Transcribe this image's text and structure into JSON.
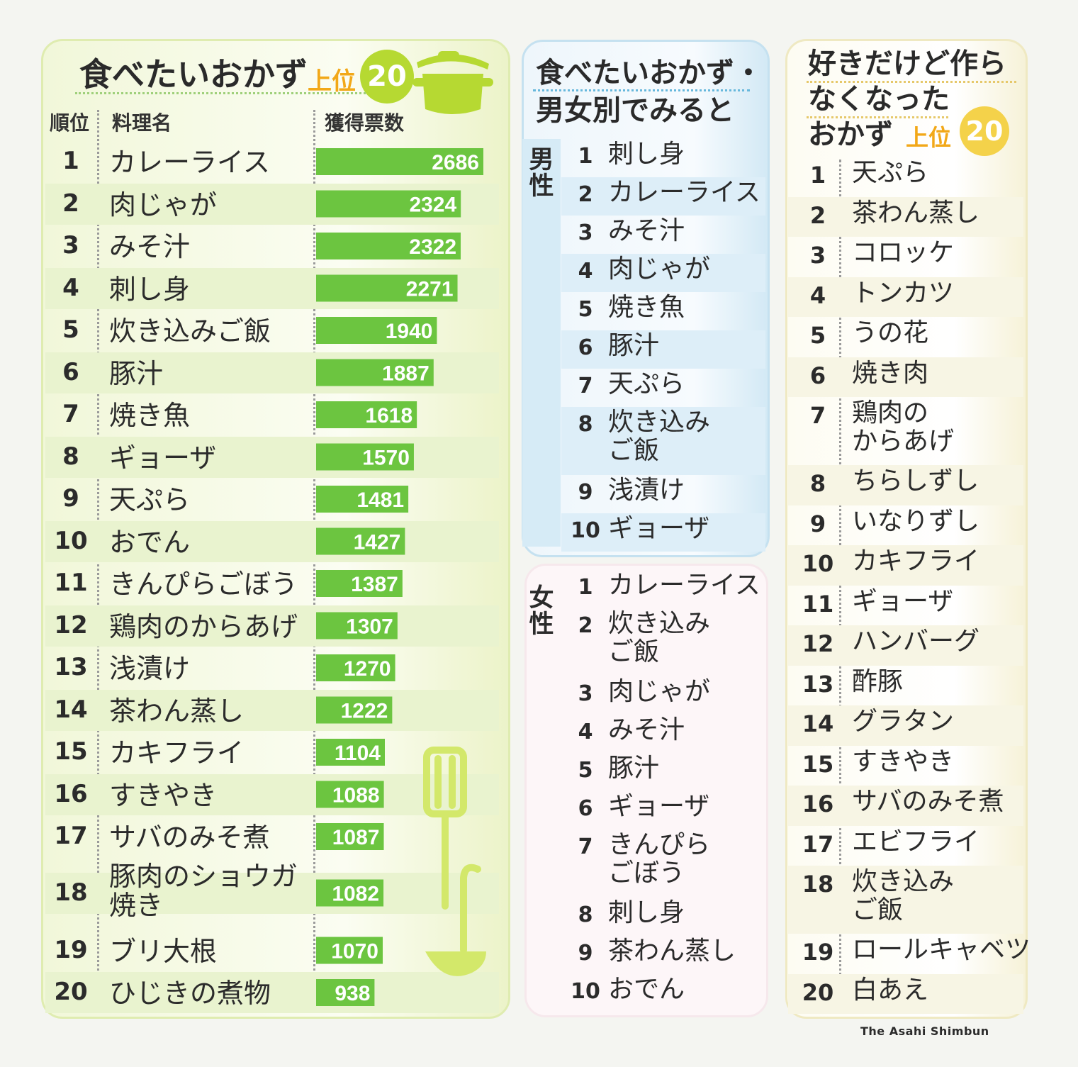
{
  "panels": {
    "overall": {
      "title": "食べたいおかず",
      "top_label": "上位",
      "badge": "20",
      "col_rank": "順位",
      "col_dish": "料理名",
      "col_votes": "獲得票数"
    },
    "by_gender": {
      "title_line1": "食べたいおかず・",
      "title_line2": "男女別でみると",
      "male_label": "男性",
      "female_label": "女性",
      "male": [
        "刺し身",
        "カレーライス",
        "みそ汁",
        "肉じゃが",
        "焼き魚",
        "豚汁",
        "天ぷら",
        "炊き込みご飯",
        "浅漬け",
        "ギョーザ"
      ],
      "female": [
        "カレーライス",
        "炊き込みご飯",
        "肉じゃが",
        "みそ汁",
        "豚汁",
        "ギョーザ",
        "きんぴらごぼう",
        "刺し身",
        "茶わん蒸し",
        "おでん"
      ]
    },
    "no_longer_made": {
      "title_line1": "好きだけど作ら",
      "title_line2": "なくなった",
      "title_line3": "おかず",
      "top_label": "上位",
      "badge": "20",
      "items": [
        "天ぷら",
        "茶わん蒸し",
        "コロッケ",
        "トンカツ",
        "うの花",
        "焼き肉",
        "鶏肉のからあげ",
        "ちらしずし",
        "いなりずし",
        "カキフライ",
        "ギョーザ",
        "ハンバーグ",
        "酢豚",
        "グラタン",
        "すきやき",
        "サバのみそ煮",
        "エビフライ",
        "炊き込みご飯",
        "ロールキャベツ",
        "白あえ"
      ]
    }
  },
  "chart_data": {
    "type": "bar",
    "orientation": "horizontal",
    "title": "食べたいおかず 上位20",
    "xlabel": "獲得票数",
    "ylabel": "料理名",
    "categories": [
      "カレーライス",
      "肉じゃが",
      "みそ汁",
      "刺し身",
      "炊き込みご飯",
      "豚汁",
      "焼き魚",
      "ギョーザ",
      "天ぷら",
      "おでん",
      "きんぴらごぼう",
      "鶏肉のからあげ",
      "浅漬け",
      "茶わん蒸し",
      "カキフライ",
      "すきやき",
      "サバのみそ煮",
      "豚肉のショウガ焼き",
      "ブリ大根",
      "ひじきの煮物"
    ],
    "values": [
      2686,
      2324,
      2322,
      2271,
      1940,
      1887,
      1618,
      1570,
      1481,
      1427,
      1387,
      1307,
      1270,
      1222,
      1104,
      1088,
      1087,
      1082,
      1070,
      938
    ],
    "xlim": [
      0,
      2686
    ],
    "bar_color": "#6cc540",
    "grid": false
  },
  "colors": {
    "bar": "#6cc540",
    "accent_orange": "#f2a818",
    "badge_green": "#b6d932",
    "badge_yellow": "#f4d24a",
    "utensil_green": "#d3e86a"
  },
  "credit": "The Asahi Shimbun"
}
